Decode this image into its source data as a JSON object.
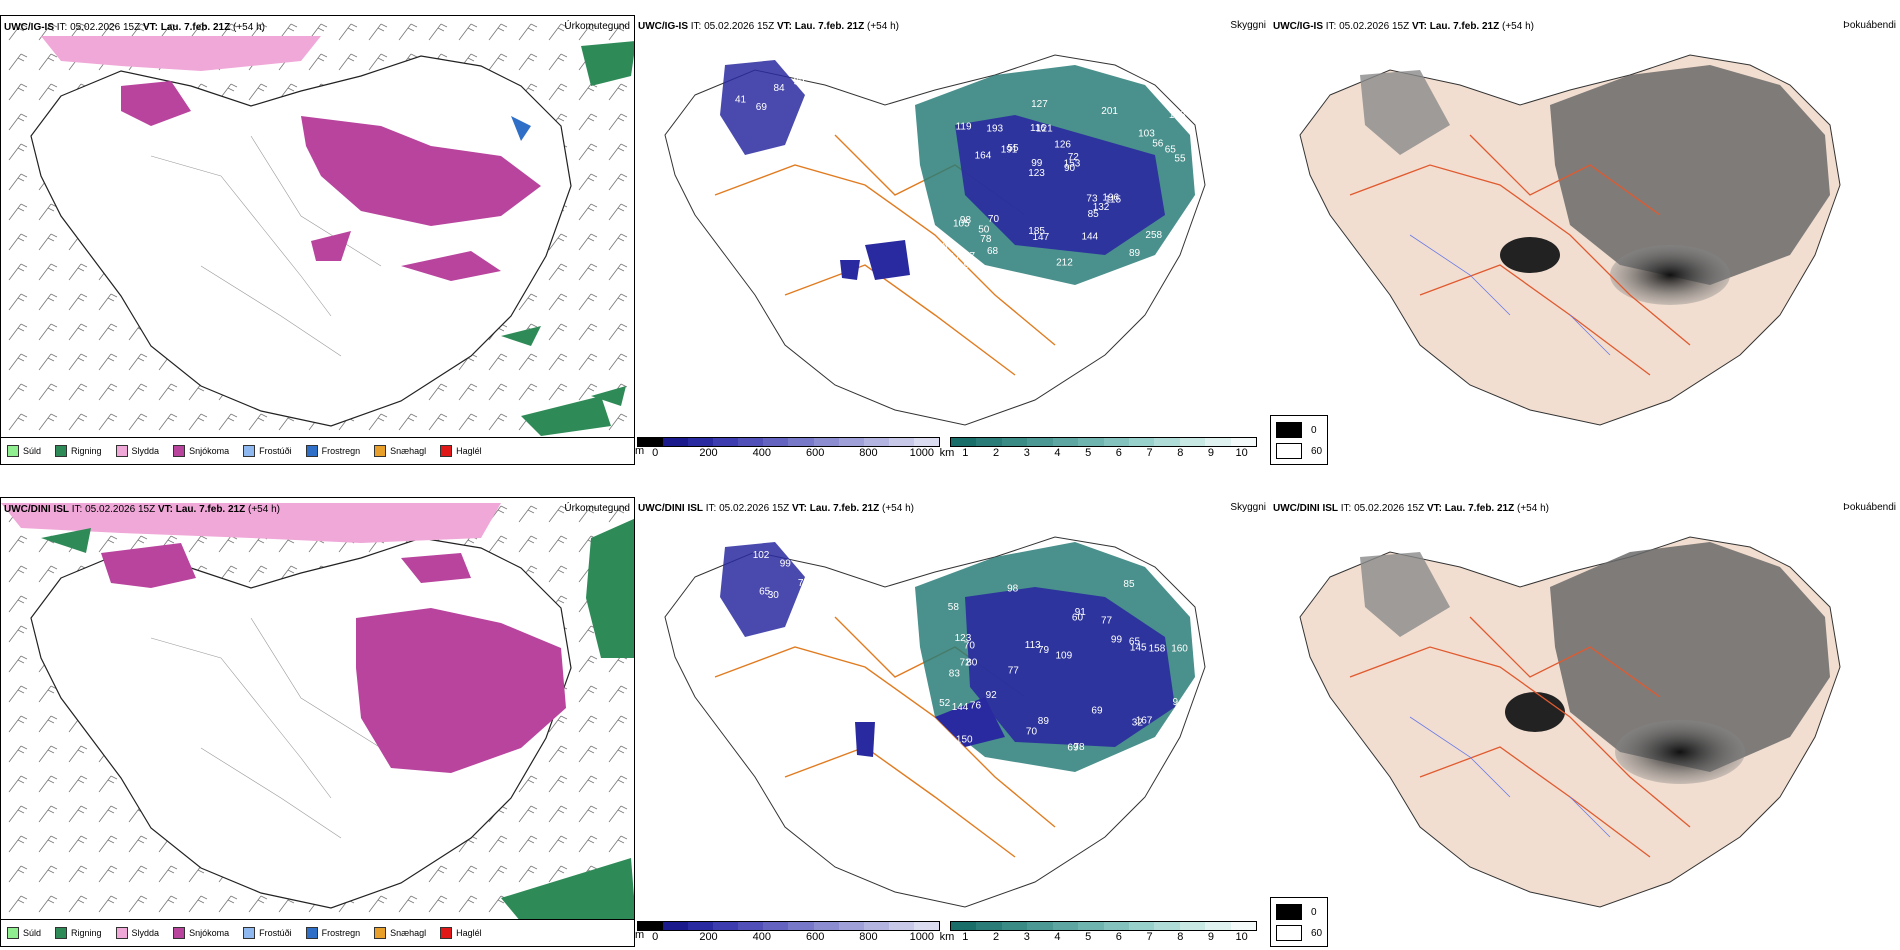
{
  "rows": [
    {
      "model": "UWC/IG-IS",
      "it_label": "IT:",
      "it_value": "05.02.2026 15Z",
      "vt_label": "VT:",
      "vt_value": "Lau. 7.feb. 21Z",
      "lead": "(+54 h)",
      "precip_title": "Úrkomutegund",
      "vis_title": "Skyggni",
      "fog_title": "Þokuábendi",
      "vis_labels": [
        "68",
        "41",
        "99",
        "69",
        "84",
        "77",
        "116",
        "126",
        "98",
        "55",
        "67",
        "78",
        "121",
        "72",
        "115",
        "119",
        "127",
        "55",
        "73",
        "56",
        "123",
        "185",
        "99",
        "193",
        "201",
        "70",
        "89",
        "258",
        "196",
        "212",
        "191",
        "164",
        "85",
        "68",
        "65",
        "153",
        "117",
        "147",
        "90",
        "105",
        "103",
        "128",
        "132",
        "144",
        "50",
        "92",
        "31"
      ]
    },
    {
      "model": "UWC/DINI ISL",
      "it_label": "IT:",
      "it_value": "05.02.2026 15Z",
      "vt_label": "VT:",
      "vt_value": "Lau. 7.feb. 21Z",
      "lead": "(+54 h)",
      "precip_title": "Úrkomutegund",
      "vis_title": "Skyggni",
      "fog_title": "Þokuábendi",
      "vis_labels": [
        "102",
        "99",
        "78",
        "65",
        "30",
        "80",
        "58",
        "77",
        "83",
        "60",
        "109",
        "150",
        "98",
        "77",
        "69",
        "78",
        "89",
        "85",
        "99",
        "92",
        "70",
        "72",
        "160",
        "158",
        "52",
        "123",
        "79",
        "145",
        "167",
        "144",
        "32",
        "91",
        "76",
        "113",
        "69",
        "94",
        "65",
        "70"
      ]
    }
  ],
  "precip_legend": [
    {
      "label": "Súld",
      "color": "#90ee90"
    },
    {
      "label": "Rigning",
      "color": "#2e8b57"
    },
    {
      "label": "Slydda",
      "color": "#f0a8d8"
    },
    {
      "label": "Snjókoma",
      "color": "#b8449e"
    },
    {
      "label": "Frostúði",
      "color": "#8fb8f0"
    },
    {
      "label": "Frostregn",
      "color": "#2f6fc8"
    },
    {
      "label": "Snæhagl",
      "color": "#e8a02a"
    },
    {
      "label": "Haglél",
      "color": "#e01818"
    }
  ],
  "height_bar": {
    "unit": "m",
    "ticks": [
      "0",
      "200",
      "400",
      "600",
      "800",
      "1000"
    ],
    "colors": [
      "#000000",
      "#1a1a8c",
      "#2a2aa0",
      "#3d3db0",
      "#5050b8",
      "#6464c0",
      "#7878c8",
      "#8c8cd0",
      "#a0a0d8",
      "#b4b4e0",
      "#c8c8e8",
      "#dcdcf0"
    ]
  },
  "visibility_bar": {
    "unit": "km",
    "ticks": [
      "1",
      "2",
      "3",
      "4",
      "5",
      "6",
      "7",
      "8",
      "9",
      "10"
    ],
    "colors": [
      "#1a6e6a",
      "#2a7c78",
      "#3a8a86",
      "#4c9894",
      "#5ea6a2",
      "#70b4b0",
      "#84c2be",
      "#98d0cc",
      "#b0dcd8",
      "#c8e8e4",
      "#e0f2f0",
      "#f4faf9"
    ]
  },
  "fog_legend": {
    "min_label": "0",
    "max_label": "60",
    "min_color": "#000000",
    "max_color": "#ffffff"
  }
}
